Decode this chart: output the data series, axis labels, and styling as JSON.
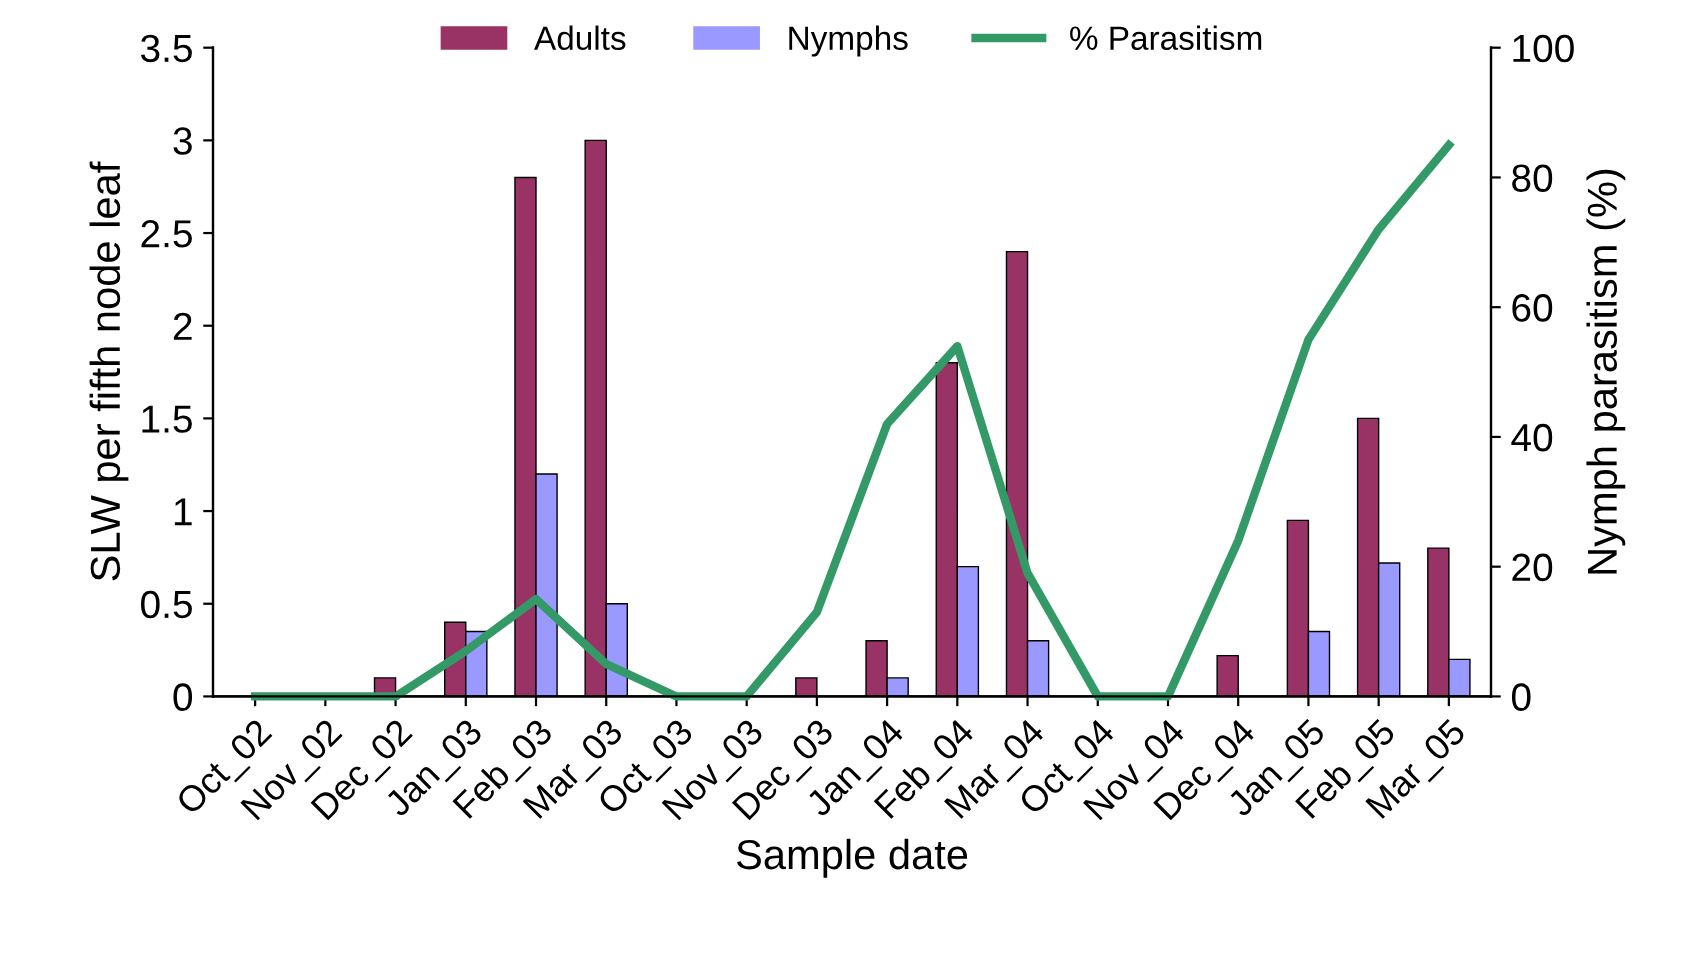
{
  "chart_data": {
    "type": "bar",
    "categories": [
      "Oct_02",
      "Nov_02",
      "Dec_02",
      "Jan_03",
      "Feb_03",
      "Mar_03",
      "Oct_03",
      "Nov_03",
      "Dec_03",
      "Jan_04",
      "Feb_04",
      "Mar_04",
      "Oct_04",
      "Nov_04",
      "Dec_04",
      "Jan_05",
      "Feb_05",
      "Mar_05"
    ],
    "series": [
      {
        "name": "Adults",
        "color": "#993366",
        "values": [
          0,
          0,
          0.1,
          0.4,
          2.8,
          3.0,
          0,
          0,
          0.1,
          0.3,
          1.8,
          2.4,
          0,
          0,
          0.22,
          0.95,
          1.5,
          0.8
        ]
      },
      {
        "name": "Nymphs",
        "color": "#9999ff",
        "values": [
          0,
          0,
          0,
          0.35,
          1.2,
          0.5,
          0,
          0,
          0,
          0.1,
          0.7,
          0.3,
          0,
          0,
          0,
          0.35,
          0.72,
          0.2
        ]
      },
      {
        "name": "% Parasitism",
        "type": "line",
        "axis": "y2",
        "color": "#339966",
        "values": [
          0,
          0,
          0,
          7,
          15,
          5,
          0,
          0,
          13,
          42,
          54,
          19,
          0,
          0,
          24,
          55,
          72,
          85
        ]
      }
    ],
    "xlabel": "Sample date",
    "ylabel": "SLW per fifth node leaf",
    "y2label": "Nymph parasitism (%)",
    "ylim": [
      0,
      3.5
    ],
    "yticks": [
      0,
      0.5,
      1,
      1.5,
      2,
      2.5,
      3,
      3.5
    ],
    "y2lim": [
      0,
      100
    ],
    "y2ticks": [
      0,
      20,
      40,
      60,
      80,
      100
    ],
    "legend": "top",
    "grid": false,
    "line_style": "solid"
  }
}
